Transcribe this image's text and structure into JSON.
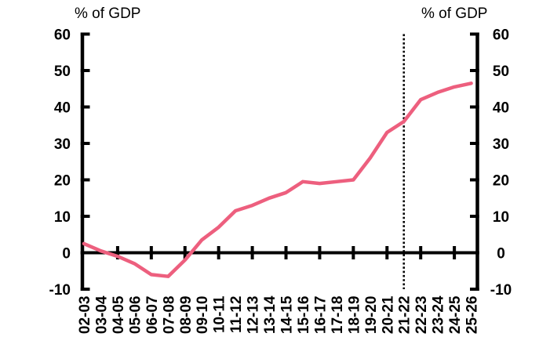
{
  "chart_data": {
    "type": "line",
    "left_axis_title": "% of GDP",
    "right_axis_title": "% of GDP",
    "categories": [
      "02-03",
      "03-04",
      "04-05",
      "05-06",
      "06-07",
      "07-08",
      "08-09",
      "09-10",
      "10-11",
      "11-12",
      "12-13",
      "13-14",
      "14-15",
      "15-16",
      "16-17",
      "17-18",
      "18-19",
      "19-20",
      "20-21",
      "21-22",
      "22-23",
      "23-24",
      "24-25",
      "25-26"
    ],
    "values": [
      2.5,
      0.5,
      -1,
      -3,
      -6,
      -6.5,
      -2,
      3.5,
      7,
      11.5,
      13,
      15,
      16.5,
      19.5,
      19,
      19.5,
      20,
      26,
      33,
      36,
      42,
      44,
      45.5,
      46.5
    ],
    "ylim": [
      -10,
      60
    ],
    "yticks": [
      60,
      50,
      40,
      30,
      20,
      10,
      0,
      -10
    ],
    "x_ticks_every": 2,
    "grid": false,
    "legend": "none",
    "reference_line": {
      "style": "vertical-dotted",
      "at_category": "21-22",
      "color": "#000000"
    },
    "line_color": "#ed5f7e",
    "axis_color": "#000000",
    "background": "#ffffff"
  }
}
